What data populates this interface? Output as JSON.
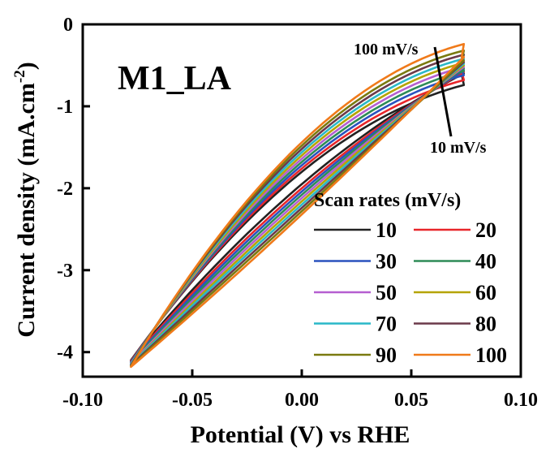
{
  "chart_data": {
    "type": "line",
    "title": "",
    "panel_label": "M1_LA",
    "xlabel": "Potential (V) vs RHE",
    "ylabel_main": "Current density (mA.cm",
    "ylabel_sup": "-2",
    "ylabel_close": ")",
    "xlim": [
      -0.1,
      0.1
    ],
    "ylim": [
      -4.3,
      0
    ],
    "xticks": [
      -0.1,
      -0.05,
      0.0,
      0.05,
      0.1
    ],
    "xtick_labels": [
      "-0.10",
      "-0.05",
      "0.00",
      "0.05",
      "0.10"
    ],
    "yticks": [
      0,
      -1,
      -2,
      -3,
      -4
    ],
    "ytick_labels": [
      "0",
      "-1",
      "-2",
      "-3",
      "-4"
    ],
    "grid": false,
    "legend": {
      "title": "Scan rates (mV/s)",
      "placement": "bottom-right",
      "columns": 2
    },
    "annotations": {
      "high": "100 mV/s",
      "low": "10 mV/s"
    },
    "cv_window": {
      "e_min": -0.078,
      "e_max": 0.074
    },
    "series": [
      {
        "name": "10",
        "color": "#222222",
        "upper_end": -0.74,
        "upper_mid": -1.8,
        "lower_end": -0.6,
        "lower_mid": -1.95,
        "start": -4.1
      },
      {
        "name": "20",
        "color": "#e8262a",
        "upper_end": -0.68,
        "upper_mid": -1.76,
        "lower_end": -0.58,
        "lower_mid": -2.0,
        "start": -4.11
      },
      {
        "name": "30",
        "color": "#2a52be",
        "upper_end": -0.62,
        "upper_mid": -1.72,
        "lower_end": -0.56,
        "lower_mid": -2.04,
        "start": -4.12
      },
      {
        "name": "40",
        "color": "#2e8b57",
        "upper_end": -0.57,
        "upper_mid": -1.68,
        "lower_end": -0.54,
        "lower_mid": -2.08,
        "start": -4.13
      },
      {
        "name": "50",
        "color": "#b55fd0",
        "upper_end": -0.52,
        "upper_mid": -1.64,
        "lower_end": -0.52,
        "lower_mid": -2.12,
        "start": -4.14
      },
      {
        "name": "60",
        "color": "#b5a400",
        "upper_end": -0.47,
        "upper_mid": -1.6,
        "lower_end": -0.5,
        "lower_mid": -2.16,
        "start": -4.15
      },
      {
        "name": "70",
        "color": "#2ab8c8",
        "upper_end": -0.42,
        "upper_mid": -1.56,
        "lower_end": -0.48,
        "lower_mid": -2.2,
        "start": -4.15
      },
      {
        "name": "80",
        "color": "#6b3a4a",
        "upper_end": -0.37,
        "upper_mid": -1.52,
        "lower_end": -0.46,
        "lower_mid": -2.24,
        "start": -4.16
      },
      {
        "name": "90",
        "color": "#7a7a10",
        "upper_end": -0.32,
        "upper_mid": -1.48,
        "lower_end": -0.44,
        "lower_mid": -2.28,
        "start": -4.17
      },
      {
        "name": "100",
        "color": "#f07a1a",
        "upper_end": -0.24,
        "upper_mid": -1.44,
        "lower_end": -0.4,
        "lower_mid": -2.32,
        "start": -4.18
      }
    ]
  }
}
